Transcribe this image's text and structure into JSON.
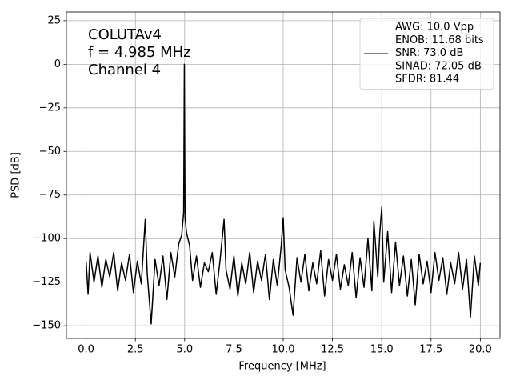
{
  "chart_data": {
    "type": "line",
    "annotation_lines": [
      "COLUTAv4",
      "f = 4.985 MHz",
      "Channel 4"
    ],
    "xlabel": "Frequency [MHz]",
    "ylabel": "PSD [dB]",
    "xlim": [
      -1,
      21
    ],
    "ylim": [
      -157.3,
      30
    ],
    "xticks": [
      {
        "value": 0,
        "label": "0.0"
      },
      {
        "value": 2.5,
        "label": "2.5"
      },
      {
        "value": 5,
        "label": "5.0"
      },
      {
        "value": 7.5,
        "label": "7.5"
      },
      {
        "value": 10,
        "label": "10.0"
      },
      {
        "value": 12.5,
        "label": "12.5"
      },
      {
        "value": 15,
        "label": "15.0"
      },
      {
        "value": 17.5,
        "label": "17.5"
      },
      {
        "value": 20,
        "label": "20.0"
      }
    ],
    "yticks": [
      25,
      0,
      {
        "value": -25,
        "label": "−25"
      },
      {
        "value": -50,
        "label": "−50"
      },
      {
        "value": -75,
        "label": "−75"
      },
      {
        "value": -100,
        "label": "−100"
      },
      {
        "value": -125,
        "label": "−125"
      },
      {
        "value": -150,
        "label": "−150"
      }
    ],
    "grid": true,
    "legend": {
      "loc": "upper right",
      "label_lines": [
        "AWG: 10.0 Vpp",
        "ENOB: 11.68 bits",
        "SNR: 73.0 dB",
        "SINAD: 72.05 dB",
        "SFDR: 81.44"
      ]
    },
    "series": [
      {
        "color": "#000000",
        "x": [
          0.0,
          0.1,
          0.2,
          0.4,
          0.6,
          0.8,
          1.0,
          1.2,
          1.4,
          1.6,
          1.8,
          2.0,
          2.2,
          2.4,
          2.6,
          2.8,
          3.0,
          3.1,
          3.3,
          3.5,
          3.7,
          3.9,
          4.1,
          4.3,
          4.5,
          4.7,
          4.85,
          4.95,
          4.985,
          5.02,
          5.1,
          5.25,
          5.4,
          5.6,
          5.8,
          6.0,
          6.2,
          6.4,
          6.6,
          6.8,
          7.0,
          7.1,
          7.3,
          7.5,
          7.7,
          7.9,
          8.1,
          8.3,
          8.5,
          8.7,
          8.9,
          9.1,
          9.3,
          9.5,
          9.7,
          9.9,
          10.0,
          10.1,
          10.3,
          10.5,
          10.7,
          10.9,
          11.1,
          11.3,
          11.5,
          11.7,
          11.9,
          12.1,
          12.3,
          12.5,
          12.7,
          12.9,
          13.1,
          13.3,
          13.5,
          13.7,
          13.9,
          14.1,
          14.3,
          14.5,
          14.6,
          14.8,
          14.9,
          15.0,
          15.1,
          15.3,
          15.5,
          15.7,
          15.9,
          16.1,
          16.3,
          16.5,
          16.7,
          16.9,
          17.1,
          17.3,
          17.5,
          17.7,
          17.9,
          18.1,
          18.3,
          18.5,
          18.7,
          18.9,
          19.1,
          19.3,
          19.5,
          19.7,
          19.9,
          20.0
        ],
        "values": [
          -113,
          -132,
          -108,
          -125,
          -110,
          -128,
          -112,
          -122,
          -108,
          -130,
          -114,
          -124,
          -109,
          -131,
          -113,
          -126,
          -89,
          -120,
          -149,
          -112,
          -127,
          -110,
          -135,
          -108,
          -122,
          -103,
          -98,
          -85,
          0,
          -88,
          -97,
          -104,
          -124,
          -110,
          -128,
          -114,
          -119,
          -108,
          -132,
          -112,
          -89,
          -118,
          -129,
          -110,
          -133,
          -114,
          -126,
          -108,
          -131,
          -113,
          -124,
          -109,
          -135,
          -112,
          -127,
          -104,
          -88,
          -118,
          -128,
          -144,
          -111,
          -125,
          -109,
          -130,
          -114,
          -126,
          -107,
          -133,
          -112,
          -124,
          -109,
          -129,
          -115,
          -127,
          -108,
          -134,
          -111,
          -128,
          -100,
          -130,
          -90,
          -122,
          -97,
          -82,
          -125,
          -96,
          -131,
          -102,
          -127,
          -110,
          -133,
          -112,
          -138,
          -109,
          -126,
          -113,
          -131,
          -108,
          -124,
          -111,
          -132,
          -114,
          -126,
          -108,
          -129,
          -112,
          -145,
          -110,
          -127,
          -114
        ]
      }
    ]
  }
}
